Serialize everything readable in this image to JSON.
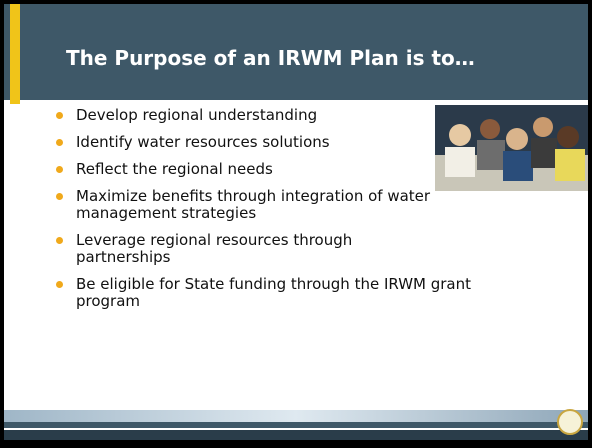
{
  "title": "The Purpose of an IRWM Plan is to…",
  "bullets": [
    "Develop regional understanding",
    "Identify water resources solutions",
    "Reflect the regional needs",
    "Maximize benefits through integration of water management strategies",
    "Leverage regional resources through partnerships",
    "Be eligible for State funding through the IRWM grant program"
  ]
}
